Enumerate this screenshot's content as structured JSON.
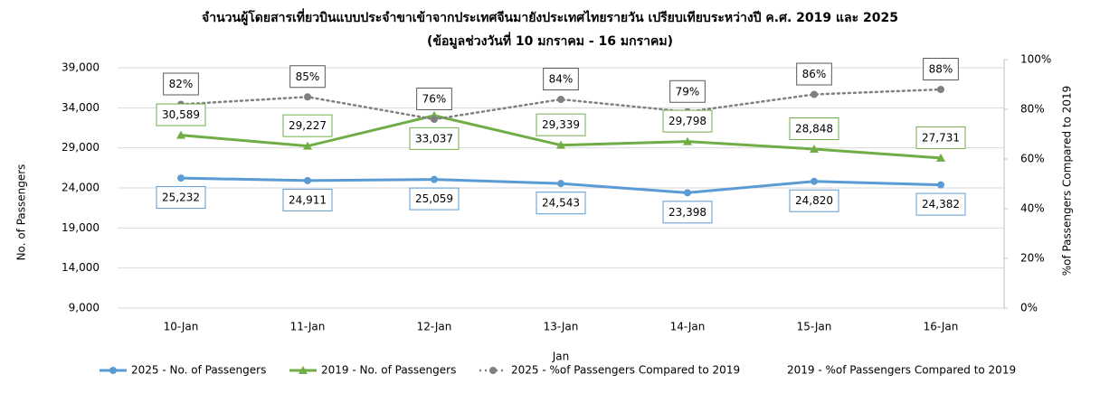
{
  "chart_data": {
    "type": "line",
    "title": "จำนวนผู้โดยสารเที่ยวบินแบบประจำขาเข้าจากประเทศจีนมายังประเทศไทยรายวัน  เปรียบเทียบระหว่างปี  ค.ศ. 2019 และ 2025",
    "subtitle": "(ข้อมูลช่วงวันที่ 10 มกราคม - 16 มกราคม)",
    "x_label": "Jan",
    "y_label": "No. of Passengers",
    "y2_label": "%of Passengers Compared to 2019",
    "categories": [
      "10-Jan",
      "11-Jan",
      "12-Jan",
      "13-Jan",
      "14-Jan",
      "15-Jan",
      "16-Jan"
    ],
    "ylim": [
      9000,
      39000
    ],
    "yticks": [
      {
        "value": 9000,
        "label": "9,000"
      },
      {
        "value": 14000,
        "label": "14,000"
      },
      {
        "value": 19000,
        "label": "19,000"
      },
      {
        "value": 24000,
        "label": "24,000"
      },
      {
        "value": 29000,
        "label": "29,000"
      },
      {
        "value": 34000,
        "label": "34,000"
      },
      {
        "value": 39000,
        "label": "39,000"
      }
    ],
    "y2lim": [
      0,
      100
    ],
    "y2ticks": [
      {
        "value": 0,
        "label": "0%"
      },
      {
        "value": 20,
        "label": "20%"
      },
      {
        "value": 40,
        "label": "40%"
      },
      {
        "value": 60,
        "label": "60%"
      },
      {
        "value": 80,
        "label": "80%"
      },
      {
        "value": 100,
        "label": "100%"
      }
    ],
    "grid": true,
    "legend": "bottom",
    "series": [
      {
        "name": "2025 - No. of Passengers",
        "color": "#5b9bd5",
        "marker": "circle",
        "values": [
          25232,
          24911,
          25059,
          24543,
          23398,
          24820,
          24382
        ],
        "value_labels": [
          "25,232",
          "24,911",
          "25,059",
          "24,543",
          "23,398",
          "24,820",
          "24,382"
        ]
      },
      {
        "name": "2019 - No. of Passengers",
        "color": "#70ad47",
        "marker": "triangle",
        "values": [
          30589,
          29227,
          33037,
          29339,
          29798,
          28848,
          27731
        ],
        "value_labels": [
          "30,589",
          "29,227",
          "33,037",
          "29,339",
          "29,798",
          "28,848",
          "27,731"
        ]
      },
      {
        "name": "2025 - %of Passengers Compared to 2019",
        "color": "#808080",
        "marker": "circle",
        "dash": "dotted",
        "axis": "y2",
        "values": [
          82,
          85,
          76,
          84,
          79,
          86,
          88
        ],
        "value_labels": [
          "82%",
          "85%",
          "76%",
          "84%",
          "79%",
          "86%",
          "88%"
        ]
      },
      {
        "name": "2019 - %of Passengers Compared to 2019",
        "axis": "y2",
        "values": [
          null,
          null,
          null,
          null,
          null,
          null,
          null
        ]
      }
    ]
  }
}
